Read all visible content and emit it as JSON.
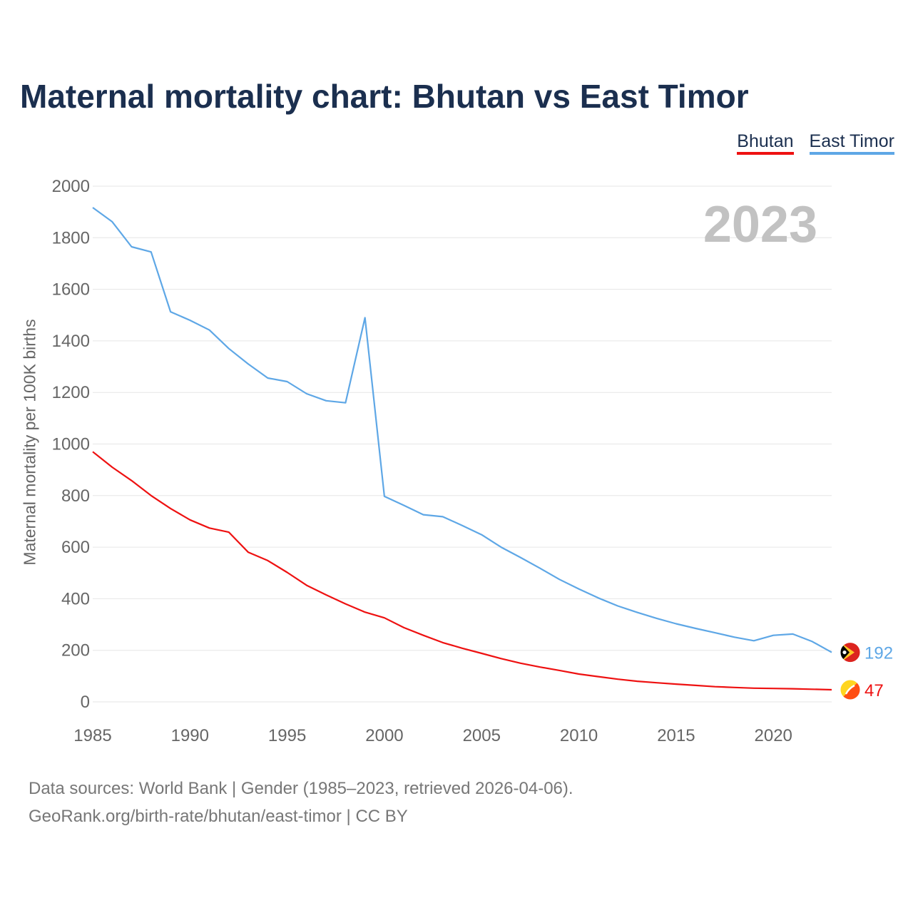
{
  "title": "Maternal mortality chart: Bhutan vs East Timor",
  "year_label": "2023",
  "legend": [
    {
      "name": "Bhutan",
      "color": "#ee1111"
    },
    {
      "name": "East Timor",
      "color": "#5ea7e6"
    }
  ],
  "footer": {
    "line1": "Data sources: World Bank | Gender (1985–2023, retrieved 2026-04-06).",
    "line2": "GeoRank.org/birth-rate/bhutan/east-timor | CC BY"
  },
  "chart_data": {
    "type": "line",
    "title": "Maternal mortality chart: Bhutan vs East Timor",
    "xlabel": "",
    "ylabel": "Maternal mortality per 100K births",
    "xlim": [
      1985,
      2023
    ],
    "ylim": [
      0,
      2000
    ],
    "x_ticks": [
      1985,
      1990,
      1995,
      2000,
      2005,
      2010,
      2015,
      2020
    ],
    "y_ticks": [
      0,
      200,
      400,
      600,
      800,
      1000,
      1200,
      1400,
      1600,
      1800,
      2000
    ],
    "grid": true,
    "legend_position": "top-right",
    "x": [
      1985,
      1986,
      1987,
      1988,
      1989,
      1990,
      1991,
      1992,
      1993,
      1994,
      1995,
      1996,
      1997,
      1998,
      1999,
      2000,
      2001,
      2002,
      2003,
      2004,
      2005,
      2006,
      2007,
      2008,
      2009,
      2010,
      2011,
      2012,
      2013,
      2014,
      2015,
      2016,
      2017,
      2018,
      2019,
      2020,
      2021,
      2022,
      2023
    ],
    "series": [
      {
        "name": "Bhutan",
        "color": "#ee1111",
        "end_label": "47",
        "flag_icon": "bhutan-flag-icon",
        "values": [
          970,
          910,
          858,
          800,
          750,
          706,
          674,
          658,
          580,
          548,
          502,
          452,
          415,
          380,
          348,
          326,
          288,
          258,
          230,
          208,
          188,
          168,
          150,
          135,
          122,
          108,
          98,
          88,
          80,
          74,
          69,
          64,
          59,
          56,
          53,
          52,
          51,
          49,
          47
        ]
      },
      {
        "name": "East Timor",
        "color": "#5ea7e6",
        "end_label": "192",
        "flag_icon": "east-timor-flag-icon",
        "values": [
          1917,
          1862,
          1765,
          1745,
          1513,
          1480,
          1442,
          1370,
          1310,
          1256,
          1242,
          1195,
          1168,
          1160,
          1490,
          797,
          762,
          726,
          718,
          684,
          648,
          600,
          560,
          518,
          475,
          438,
          403,
          372,
          347,
          324,
          303,
          285,
          268,
          251,
          237,
          258,
          263,
          234,
          192
        ]
      }
    ]
  }
}
